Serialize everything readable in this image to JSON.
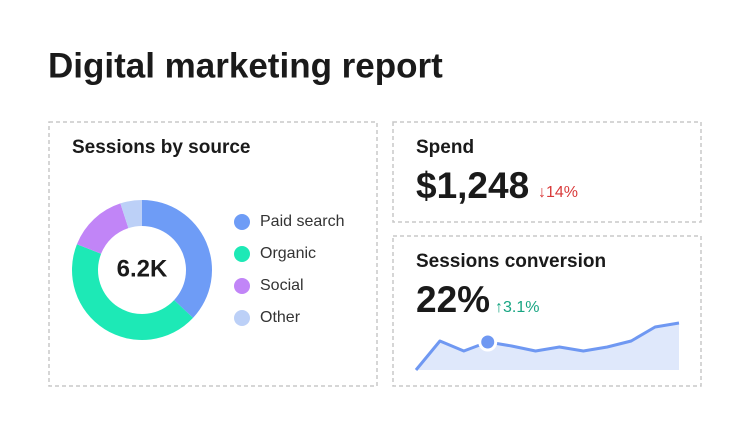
{
  "header": {
    "title": "Digital marketing report"
  },
  "spend": {
    "title": "Spend",
    "value": "$1,248",
    "change": "↓14%"
  },
  "chart_data": [
    {
      "type": "donut",
      "title": "Sessions by source",
      "center_label": "6.2K",
      "categories": [
        "Paid search",
        "Organic",
        "Social",
        "Other"
      ],
      "values": [
        37,
        44,
        14,
        5
      ],
      "colors": [
        "#6e9cf6",
        "#1de9b6",
        "#c185f7",
        "#bcd0f7"
      ]
    },
    {
      "type": "line",
      "title": "Sessions conversion",
      "headline": "22%",
      "change": "↑3.1%",
      "values": [
        0,
        29,
        19,
        28,
        24,
        19,
        23,
        19,
        23,
        29,
        43,
        47
      ],
      "color": "#6f98f2",
      "fill": "#dfe8fb",
      "ylim": [
        0,
        50
      ],
      "marker_index": 3
    }
  ]
}
